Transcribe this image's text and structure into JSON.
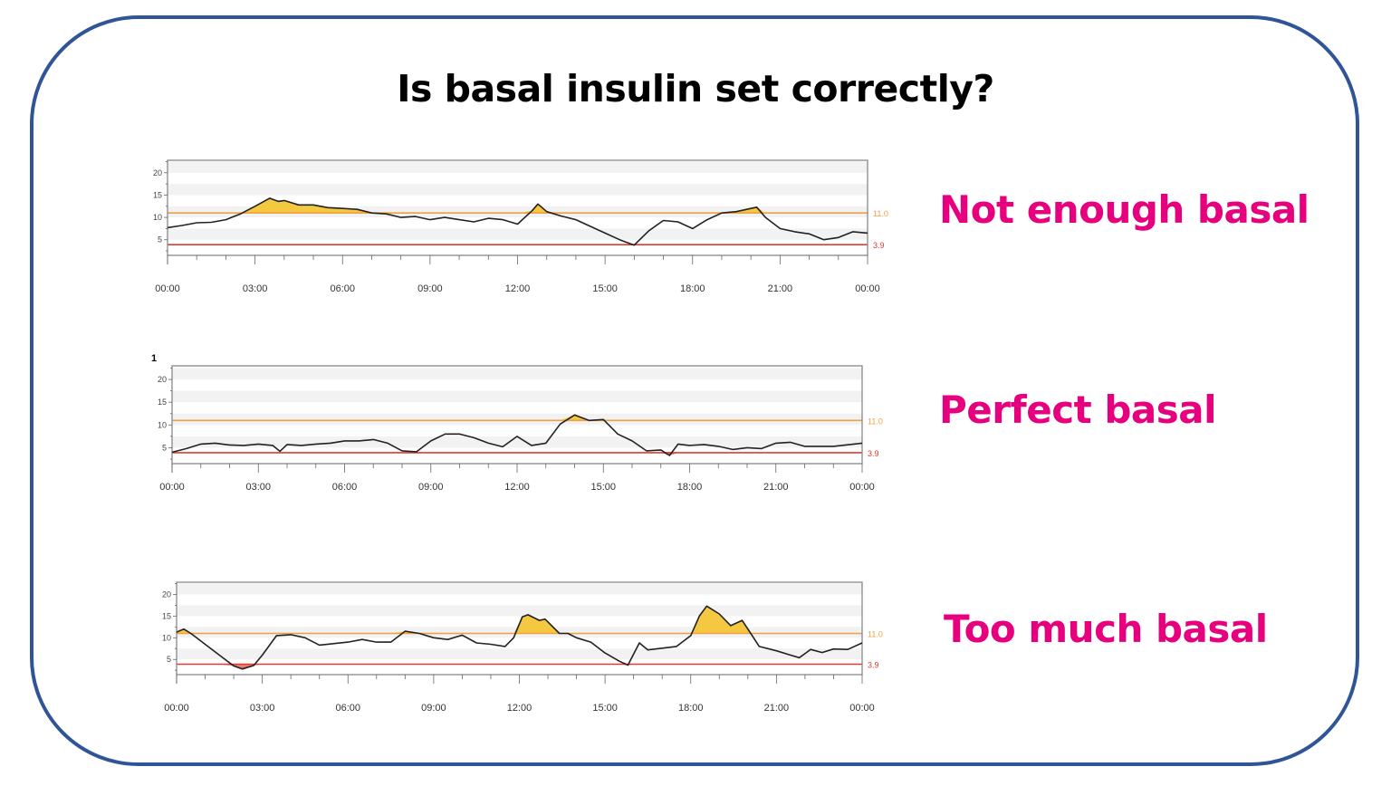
{
  "title": "Is basal insulin set correctly?",
  "colors": {
    "frame": "#2f5597",
    "label": "#e6007e",
    "high_line": "#f0a040",
    "low_line": "#e03c31",
    "high_fill": "#f5c842",
    "low_fill": "#ec7b72",
    "trace": "#222222"
  },
  "chart_data": [
    {
      "type": "line",
      "label": "Not enough basal",
      "xlabel": "",
      "ylabel": "",
      "xlim": [
        0,
        24
      ],
      "ylim": [
        1.5,
        22.8
      ],
      "x_ticks": [
        "00:00",
        "03:00",
        "06:00",
        "09:00",
        "12:00",
        "15:00",
        "18:00",
        "21:00",
        "00:00"
      ],
      "y_ticks": [
        "5",
        "10",
        "15",
        "20"
      ],
      "thresholds": [
        {
          "value": 11.0,
          "label": "11.0"
        },
        {
          "value": 3.9,
          "label": "3.9"
        }
      ],
      "x": [
        0,
        0.5,
        1,
        1.5,
        2,
        2.5,
        3,
        3.5,
        3.8,
        4,
        4.5,
        5,
        5.5,
        6,
        6.5,
        7,
        7.5,
        8,
        8.5,
        9,
        9.5,
        10,
        10.5,
        11,
        11.5,
        12,
        12.5,
        12.7,
        13,
        13.5,
        14,
        14.5,
        15,
        15.5,
        16,
        16.5,
        17,
        17.5,
        18,
        18.5,
        19,
        19.5,
        20,
        20.2,
        20.5,
        21,
        21.5,
        22,
        22.5,
        23,
        23.5,
        24
      ],
      "y": [
        7.7,
        8.2,
        8.8,
        8.9,
        9.5,
        10.8,
        12.5,
        14.3,
        13.6,
        13.8,
        12.8,
        12.8,
        12.2,
        12,
        11.8,
        11,
        10.8,
        10,
        10.2,
        9.5,
        10,
        9.5,
        9,
        9.8,
        9.5,
        8.5,
        11.5,
        13,
        11.3,
        10.3,
        9.5,
        8,
        6.5,
        5,
        3.8,
        7,
        9.3,
        9,
        7.5,
        9.5,
        11,
        11.3,
        12,
        12.3,
        10,
        7.5,
        6.8,
        6.3,
        5,
        5.5,
        6.8,
        6.5
      ]
    },
    {
      "type": "line",
      "label": "Perfect basal",
      "corner_label": "1",
      "xlabel": "",
      "ylabel": "",
      "xlim": [
        0,
        24
      ],
      "ylim": [
        1.5,
        23
      ],
      "x_ticks": [
        "00:00",
        "03:00",
        "06:00",
        "09:00",
        "12:00",
        "15:00",
        "18:00",
        "21:00",
        "00:00"
      ],
      "y_ticks": [
        "5",
        "10",
        "15",
        "20"
      ],
      "thresholds": [
        {
          "value": 11.0,
          "label": "11.0"
        },
        {
          "value": 3.9,
          "label": "3.9"
        }
      ],
      "x": [
        0,
        0.5,
        1,
        1.5,
        2,
        2.5,
        3,
        3.5,
        3.75,
        4,
        4.5,
        5,
        5.5,
        6,
        6.5,
        7,
        7.5,
        8,
        8.5,
        9,
        9.5,
        10,
        10.5,
        11,
        11.5,
        12,
        12.5,
        13,
        13.5,
        14,
        14.5,
        15,
        15.5,
        16,
        16.5,
        17,
        17.3,
        17.6,
        18,
        18.5,
        19,
        19.5,
        20,
        20.5,
        21,
        21.5,
        22,
        23,
        24
      ],
      "y": [
        4,
        4.8,
        5.8,
        6,
        5.6,
        5.5,
        5.8,
        5.5,
        4.2,
        5.7,
        5.5,
        5.8,
        6,
        6.5,
        6.5,
        6.8,
        6,
        4.3,
        4.1,
        6.5,
        8,
        8,
        7.2,
        6,
        5.2,
        7.5,
        5.5,
        6,
        10.2,
        12.2,
        11,
        11.2,
        8,
        6.5,
        4.3,
        4.5,
        3.3,
        5.8,
        5.5,
        5.7,
        5.3,
        4.6,
        5,
        4.8,
        6,
        6.2,
        5.3,
        5.3,
        6
      ]
    },
    {
      "type": "line",
      "label": "Too much basal",
      "xlabel": "",
      "ylabel": "",
      "xlim": [
        0,
        24
      ],
      "ylim": [
        1.5,
        22.8
      ],
      "x_ticks": [
        "00:00",
        "03:00",
        "06:00",
        "09:00",
        "12:00",
        "15:00",
        "18:00",
        "21:00",
        "00:00"
      ],
      "y_ticks": [
        "5",
        "10",
        "15",
        "20"
      ],
      "thresholds": [
        {
          "value": 11.0,
          "label": "11.0"
        },
        {
          "value": 3.9,
          "label": "3.9"
        }
      ],
      "x": [
        0,
        0.25,
        0.5,
        1,
        1.5,
        2,
        2.3,
        2.7,
        3,
        3.5,
        4,
        4.5,
        5,
        6,
        6.5,
        7,
        7.5,
        8,
        8.5,
        9,
        9.5,
        10,
        10.5,
        11,
        11.5,
        11.8,
        12.1,
        12.3,
        12.7,
        12.9,
        13.4,
        13.7,
        14,
        14.5,
        15,
        15.5,
        15.8,
        16.2,
        16.5,
        17,
        17.5,
        18,
        18.3,
        18.56,
        19,
        19.4,
        19.8,
        20.1,
        20.4,
        21,
        21.5,
        21.8,
        22.2,
        22.6,
        23,
        23.5,
        24
      ],
      "y": [
        11.3,
        12,
        11,
        8.5,
        6,
        3.5,
        2.8,
        3.6,
        6,
        10.5,
        10.7,
        10,
        8.3,
        9,
        9.6,
        9,
        9,
        11.5,
        11,
        10,
        9.6,
        10.6,
        8.8,
        8.5,
        8,
        10,
        14.8,
        15.3,
        14,
        14.3,
        11,
        11,
        10,
        9,
        6.5,
        4.6,
        3.7,
        8.8,
        7.2,
        7.6,
        8,
        10.5,
        15,
        17.3,
        15.5,
        12.8,
        14,
        11,
        8,
        7,
        6,
        5.4,
        7.3,
        6.6,
        7.4,
        7.3,
        8.8
      ]
    }
  ]
}
